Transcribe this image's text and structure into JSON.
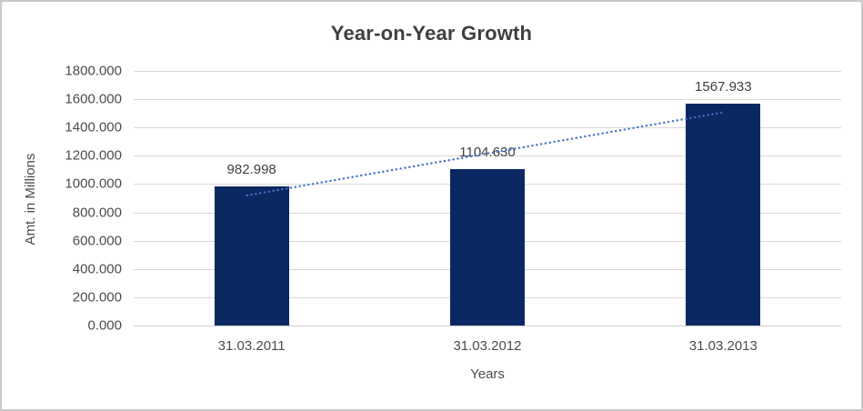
{
  "chart": {
    "title": "Year-on-Year Growth",
    "y_axis_title": "Amt. in Millions",
    "x_axis_title": "Years"
  },
  "chart_data": {
    "type": "bar",
    "title": "Year-on-Year Growth",
    "xlabel": "Years",
    "ylabel": "Amt. in Millions",
    "categories": [
      "31.03.2011",
      "31.03.2012",
      "31.03.2013"
    ],
    "values": [
      982.998,
      1104.63,
      1567.933
    ],
    "data_labels": [
      "982.998",
      "1104.630",
      "1567.933"
    ],
    "ylim": [
      0,
      1800
    ],
    "ytick_step": 200,
    "ytick_labels": [
      "0.000",
      "200.000",
      "400.000",
      "600.000",
      "800.000",
      "1000.000",
      "1200.000",
      "1400.000",
      "1600.000",
      "1800.000"
    ],
    "grid": true,
    "legend": "none",
    "bar_color": "#0c2862",
    "trendline": {
      "shape": "linear",
      "line_style": "dotted",
      "color": "#4472c4",
      "start_value": 920,
      "end_value": 1505
    }
  },
  "colors": {
    "background": "#ffffff",
    "border": "#c9c9c9",
    "gridline": "#d9d9d9",
    "axis_line": "#cfcfcf",
    "title_text": "#3f3f3f",
    "axis_text": "#4b4b4b",
    "bar": "#0c2862",
    "trendline": "#4472c4"
  }
}
